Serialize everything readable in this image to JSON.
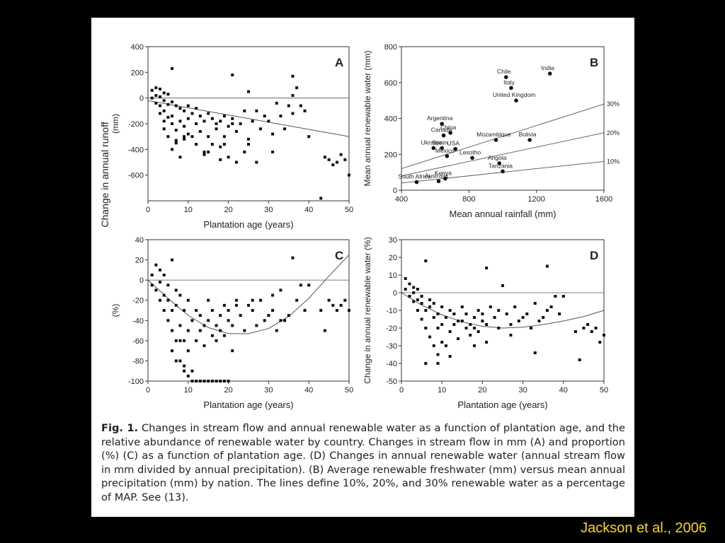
{
  "citation": "Jackson et al., 2006",
  "caption": {
    "label": "Fig. 1.",
    "text": "Changes in stream flow and annual renewable water as a function of plantation age, and the relative abundance of renewable water by country. Changes in stream flow in mm (A) and proportion (%) (C) as a function of plantation age. (D) Changes in annual renewable water (annual stream flow in mm divided by annual precipitation). (B) Average renewable freshwater (mm) versus mean annual precipitation (mm) by nation. The lines define 10%, 20%, and 30% renewable water as a percentage of MAP. See (13)."
  },
  "shared_ylabel": "Change in annual runoff",
  "chart_data": [
    {
      "panel": "A",
      "type": "scatter",
      "xlabel": "Plantation age (years)",
      "ylabel": "(mm)",
      "xlim": [
        0,
        50
      ],
      "ylim": [
        -800,
        400
      ],
      "xticks": [
        0,
        10,
        20,
        30,
        40,
        50
      ],
      "yticks": [
        -600,
        -400,
        -200,
        0,
        200,
        400
      ],
      "zero_line": true,
      "trend": {
        "x": [
          0,
          50
        ],
        "y": [
          -20,
          -300
        ]
      },
      "points": {
        "x": [
          1,
          1,
          2,
          2,
          2,
          3,
          3,
          3,
          3,
          4,
          4,
          4,
          4,
          5,
          5,
          5,
          5,
          6,
          6,
          6,
          6,
          7,
          7,
          7,
          8,
          8,
          8,
          9,
          9,
          9,
          10,
          10,
          10,
          11,
          11,
          12,
          12,
          13,
          13,
          14,
          14,
          15,
          15,
          16,
          16,
          17,
          17,
          18,
          18,
          19,
          19,
          20,
          20,
          21,
          21,
          22,
          22,
          23,
          24,
          24,
          25,
          25,
          26,
          27,
          27,
          28,
          29,
          30,
          31,
          32,
          33,
          34,
          35,
          36,
          36,
          37,
          38,
          39,
          40,
          43,
          44,
          45,
          46,
          47,
          48,
          49,
          50,
          6,
          21,
          36,
          4,
          9,
          12,
          15,
          18,
          25,
          31,
          7,
          14,
          19
        ],
        "y": [
          60,
          0,
          80,
          20,
          -40,
          70,
          10,
          -60,
          -120,
          40,
          -20,
          -100,
          -180,
          30,
          -50,
          -150,
          -300,
          230,
          -30,
          -200,
          -400,
          -60,
          -250,
          -350,
          -80,
          -180,
          -460,
          -100,
          -220,
          -320,
          -60,
          -160,
          -280,
          -120,
          -300,
          -80,
          -200,
          -140,
          -260,
          -180,
          -420,
          -120,
          -300,
          -160,
          -360,
          -200,
          -240,
          -180,
          -380,
          -140,
          -300,
          -220,
          -460,
          180,
          -160,
          -260,
          -500,
          -200,
          -100,
          -420,
          50,
          -320,
          -180,
          -100,
          -500,
          -240,
          -140,
          -180,
          -280,
          -40,
          -140,
          -240,
          -60,
          170,
          -120,
          80,
          -60,
          -100,
          -300,
          -780,
          -460,
          -480,
          -520,
          -500,
          -440,
          -480,
          -600,
          -140,
          -200,
          20,
          -240,
          -300,
          -360,
          -420,
          -480,
          -360,
          -420,
          -330,
          -440,
          -360
        ]
      }
    },
    {
      "panel": "B",
      "type": "scatter",
      "xlabel": "Mean annual rainfall (mm)",
      "ylabel": "Mean annual renewable water (mm)",
      "xlim": [
        400,
        1600
      ],
      "ylim": [
        0,
        800
      ],
      "xticks": [
        400,
        800,
        1200,
        1600
      ],
      "yticks": [
        0,
        200,
        400,
        600,
        800
      ],
      "reference_lines": [
        {
          "label": "30%",
          "fraction": 0.3
        },
        {
          "label": "20%",
          "fraction": 0.2
        },
        {
          "label": "10%",
          "fraction": 0.1
        }
      ],
      "points": [
        {
          "label": "India",
          "x": 1280,
          "y": 650
        },
        {
          "label": "Chile",
          "x": 1020,
          "y": 630
        },
        {
          "label": "Italy",
          "x": 1050,
          "y": 570
        },
        {
          "label": "United Kingdom",
          "x": 1080,
          "y": 500
        },
        {
          "label": "Argentina",
          "x": 640,
          "y": 370
        },
        {
          "label": "China",
          "x": 690,
          "y": 320
        },
        {
          "label": "Canada",
          "x": 650,
          "y": 305
        },
        {
          "label": "Mozambique",
          "x": 960,
          "y": 280
        },
        {
          "label": "Bolivia",
          "x": 1160,
          "y": 280
        },
        {
          "label": "Ukraine",
          "x": 590,
          "y": 235
        },
        {
          "label": "Spain",
          "x": 640,
          "y": 235
        },
        {
          "label": "USA",
          "x": 720,
          "y": 230
        },
        {
          "label": "Lesotho",
          "x": 820,
          "y": 180
        },
        {
          "label": "Mexico",
          "x": 670,
          "y": 190
        },
        {
          "label": "Angola",
          "x": 980,
          "y": 150
        },
        {
          "label": "Kenya",
          "x": 660,
          "y": 65
        },
        {
          "label": "South Africa",
          "x": 490,
          "y": 45
        },
        {
          "label": "Australia",
          "x": 620,
          "y": 50
        },
        {
          "label": "Tanzania",
          "x": 1000,
          "y": 105
        }
      ]
    },
    {
      "panel": "C",
      "type": "scatter",
      "xlabel": "Plantation age (years)",
      "ylabel": "(%)",
      "xlim": [
        0,
        50
      ],
      "ylim": [
        -100,
        40
      ],
      "xticks": [
        0,
        10,
        20,
        30,
        40,
        50
      ],
      "yticks": [
        -100,
        -80,
        -60,
        -40,
        -20,
        0,
        20,
        40
      ],
      "zero_line": true,
      "trend": {
        "x": [
          0,
          5,
          10,
          15,
          20,
          25,
          30,
          35,
          40,
          45,
          50
        ],
        "y": [
          0,
          -18,
          -35,
          -47,
          -53,
          -53,
          -48,
          -36,
          -18,
          4,
          25
        ]
      },
      "points": {
        "x": [
          1,
          1,
          2,
          2,
          3,
          3,
          3,
          4,
          4,
          4,
          5,
          5,
          5,
          6,
          6,
          6,
          7,
          7,
          7,
          8,
          8,
          8,
          9,
          9,
          9,
          10,
          10,
          10,
          11,
          11,
          12,
          12,
          13,
          13,
          14,
          14,
          15,
          15,
          16,
          16,
          17,
          17,
          18,
          18,
          19,
          19,
          20,
          20,
          21,
          21,
          22,
          23,
          24,
          25,
          26,
          27,
          28,
          29,
          30,
          31,
          32,
          33,
          34,
          35,
          36,
          37,
          38,
          39,
          40,
          43,
          44,
          45,
          46,
          47,
          48,
          49,
          50,
          11,
          12,
          13,
          14,
          15,
          16,
          17,
          18,
          19,
          20,
          6,
          7,
          8,
          9,
          10,
          22,
          26,
          31,
          33
        ],
        "y": [
          5,
          -5,
          15,
          -10,
          10,
          -20,
          -2,
          5,
          -30,
          -15,
          -5,
          -40,
          -20,
          20,
          -50,
          -30,
          -10,
          -60,
          -25,
          -80,
          -15,
          -45,
          -90,
          -30,
          -60,
          -20,
          -50,
          -70,
          -40,
          -90,
          -30,
          -60,
          -35,
          -50,
          -45,
          -65,
          -20,
          -40,
          -55,
          -30,
          -45,
          -60,
          -35,
          -50,
          -25,
          -55,
          -40,
          -30,
          -45,
          -70,
          -20,
          -35,
          -50,
          -25,
          -30,
          -45,
          -20,
          -40,
          -35,
          -30,
          -50,
          -10,
          -40,
          -35,
          22,
          -20,
          -5,
          -30,
          -5,
          -30,
          -50,
          -20,
          -25,
          -30,
          -25,
          -20,
          -30,
          -100,
          -100,
          -100,
          -100,
          -100,
          -100,
          -100,
          -100,
          -100,
          -100,
          -70,
          -80,
          -60,
          -85,
          -95,
          -25,
          -20,
          -15,
          -40
        ]
      }
    },
    {
      "panel": "D",
      "type": "scatter",
      "xlabel": "Plantation age (years)",
      "ylabel": "Change in annual renewable water (%)",
      "xlim": [
        0,
        50
      ],
      "ylim": [
        -50,
        30
      ],
      "xticks": [
        0,
        10,
        20,
        30,
        40,
        50
      ],
      "yticks": [
        -50,
        -40,
        -30,
        -20,
        -10,
        0,
        10,
        20,
        30
      ],
      "zero_line": true,
      "trend": {
        "x": [
          0,
          5,
          10,
          15,
          20,
          25,
          30,
          35,
          40,
          45,
          50
        ],
        "y": [
          0,
          -7,
          -12.5,
          -16.5,
          -19,
          -20,
          -19.5,
          -18,
          -16,
          -13.5,
          -10
        ]
      },
      "points": {
        "x": [
          1,
          1,
          2,
          2,
          3,
          3,
          3,
          4,
          4,
          4,
          5,
          5,
          5,
          6,
          6,
          6,
          7,
          7,
          7,
          8,
          8,
          8,
          9,
          9,
          9,
          10,
          10,
          10,
          11,
          11,
          12,
          12,
          13,
          13,
          14,
          14,
          15,
          15,
          16,
          16,
          17,
          17,
          18,
          18,
          19,
          19,
          20,
          20,
          21,
          21,
          22,
          23,
          24,
          25,
          26,
          27,
          28,
          29,
          30,
          31,
          32,
          33,
          34,
          35,
          36,
          37,
          38,
          39,
          40,
          43,
          44,
          45,
          46,
          47,
          48,
          49,
          50,
          6,
          9,
          12,
          18,
          21,
          24,
          27,
          33,
          36
        ],
        "y": [
          8,
          2,
          5,
          -2,
          3,
          -5,
          0,
          2,
          -10,
          -4,
          -2,
          -15,
          -6,
          18,
          -20,
          -10,
          -4,
          -25,
          -8,
          -30,
          -6,
          -14,
          -35,
          -12,
          -20,
          -8,
          -18,
          -28,
          -14,
          -30,
          -10,
          -22,
          -12,
          -18,
          -16,
          -26,
          -8,
          -16,
          -20,
          -12,
          -18,
          -24,
          -14,
          -20,
          -10,
          -22,
          -16,
          -12,
          -18,
          -28,
          -8,
          -14,
          -20,
          4,
          -12,
          -18,
          -8,
          -16,
          -14,
          -12,
          -20,
          -6,
          -16,
          -14,
          15,
          -8,
          -2,
          -12,
          -2,
          -22,
          -38,
          -20,
          -18,
          -22,
          -20,
          -28,
          -24,
          -40,
          -40,
          -36,
          -30,
          14,
          -10,
          -24,
          -34,
          -10
        ]
      }
    }
  ]
}
